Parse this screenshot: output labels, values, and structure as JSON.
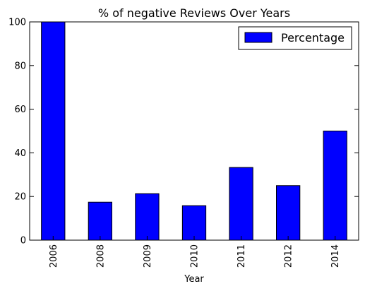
{
  "chart_data": {
    "type": "bar",
    "title": "% of negative Reviews Over Years",
    "xlabel": "Year",
    "ylabel": "",
    "categories": [
      "2006",
      "2008",
      "2009",
      "2010",
      "2011",
      "2012",
      "2014"
    ],
    "series": [
      {
        "name": "Percentage",
        "values": [
          100,
          17.4,
          21.3,
          15.8,
          33.3,
          25,
          50
        ]
      }
    ],
    "ylim": [
      0,
      100
    ],
    "yticks": [
      0,
      20,
      40,
      60,
      80,
      100
    ],
    "grid": false,
    "legend_position": "top-right",
    "bar_color": "#0000ff"
  }
}
